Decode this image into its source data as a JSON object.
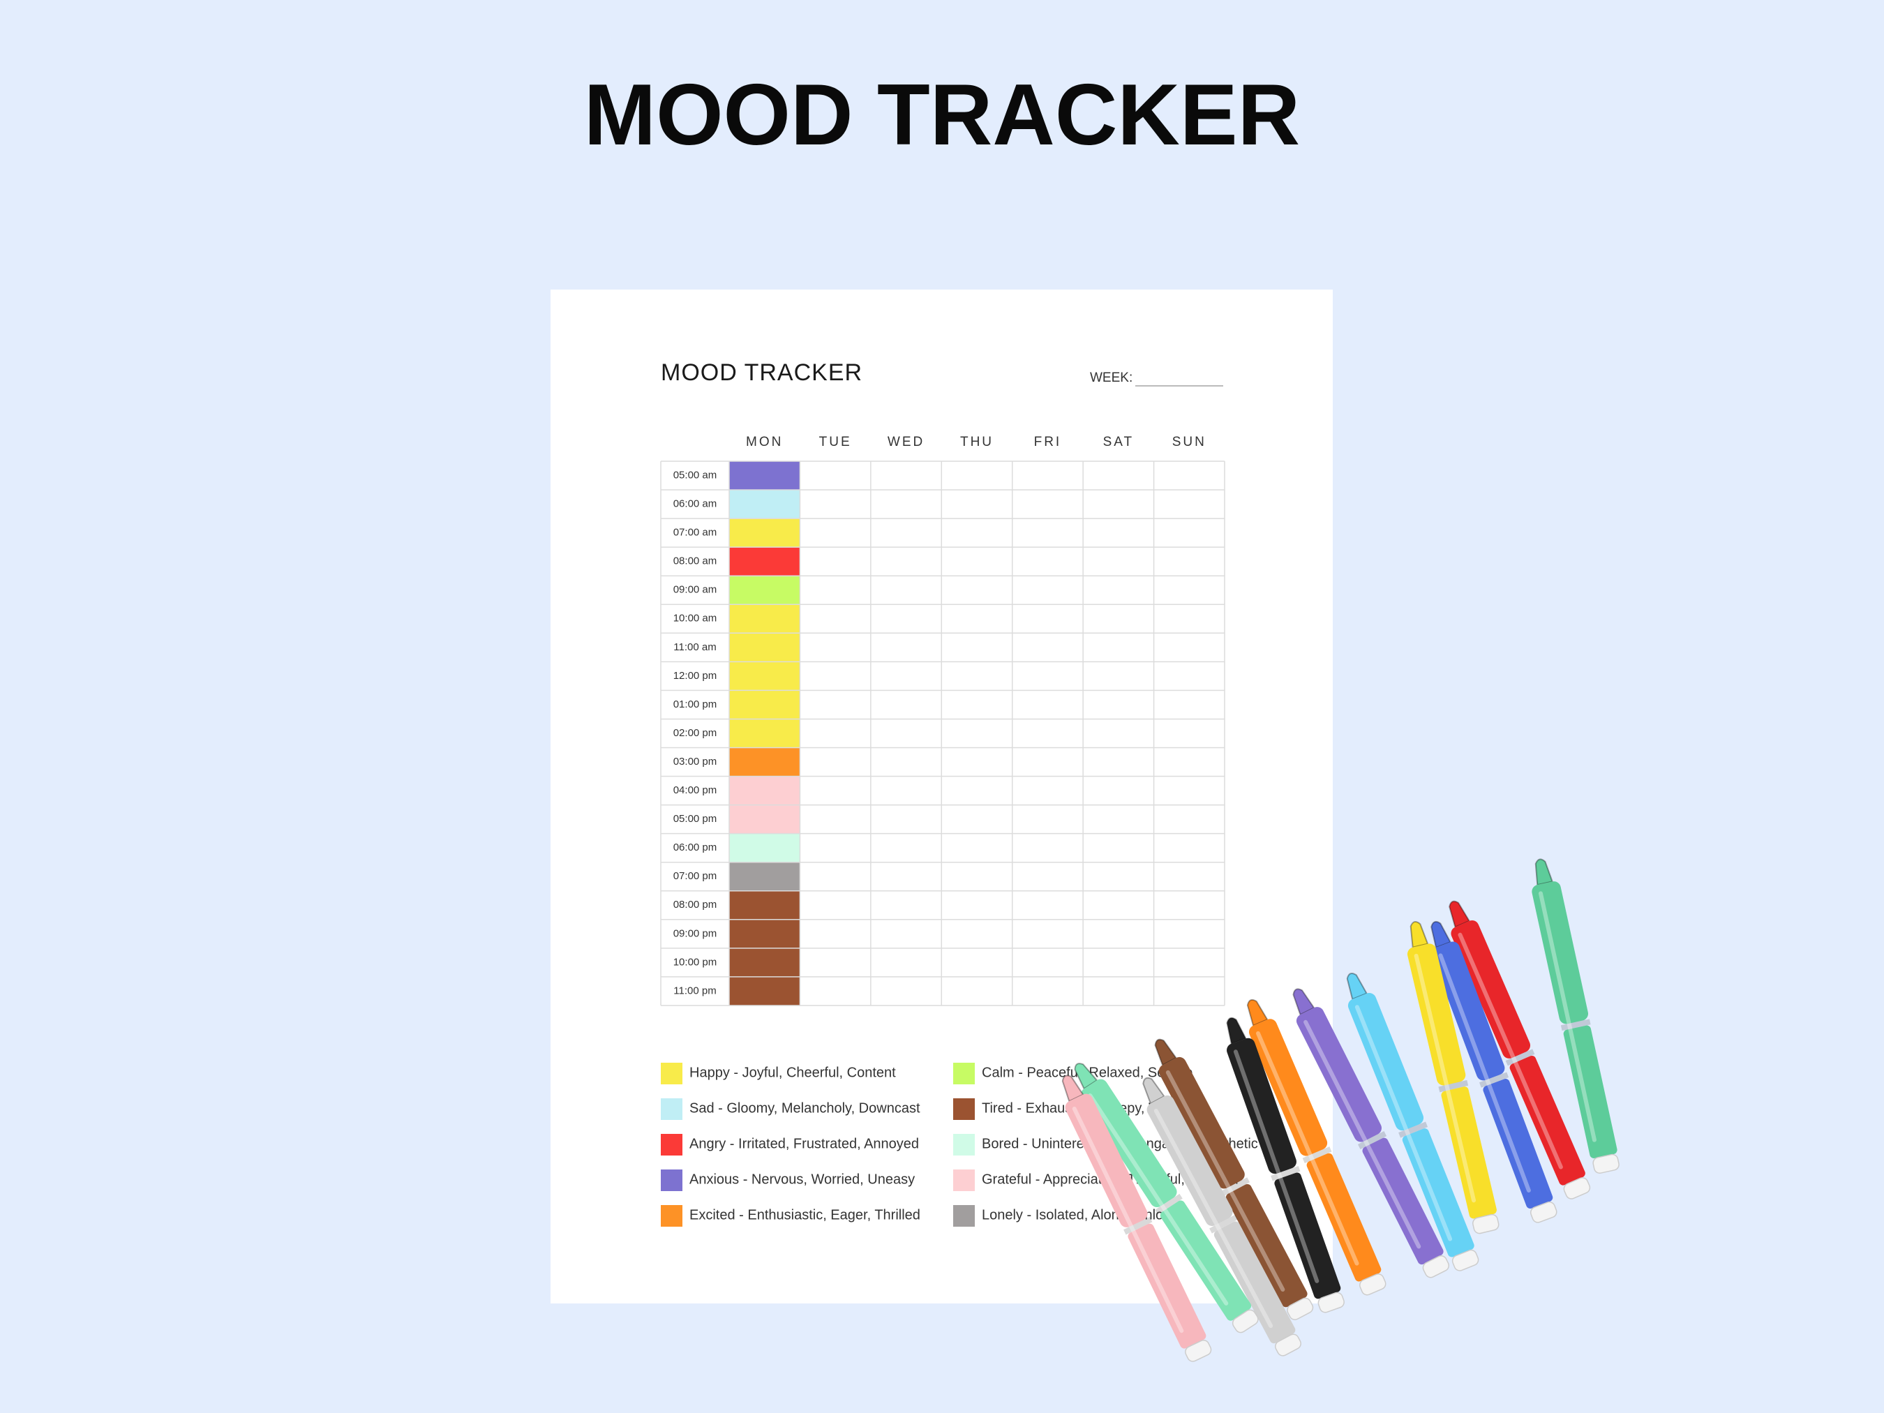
{
  "header": {
    "title": "MOOD TRACKER"
  },
  "sheet": {
    "title": "MOOD TRACKER",
    "week_label": "WEEK:",
    "days": [
      "MON",
      "TUE",
      "WED",
      "THU",
      "FRI",
      "SAT",
      "SUN"
    ],
    "times": [
      "05:00 am",
      "06:00 am",
      "07:00 am",
      "08:00 am",
      "09:00 am",
      "10:00 am",
      "11:00 am",
      "12:00 pm",
      "01:00 pm",
      "02:00 pm",
      "03:00 pm",
      "04:00 pm",
      "05:00 pm",
      "06:00 pm",
      "07:00 pm",
      "08:00 pm",
      "09:00 pm",
      "10:00 pm",
      "11:00 pm"
    ],
    "mon_colors": [
      "#7d72d0",
      "#c0eef5",
      "#f8eb4a",
      "#fb3a37",
      "#c7fb64",
      "#f8eb4a",
      "#f8eb4a",
      "#f8eb4a",
      "#f8eb4a",
      "#f8eb4a",
      "#fd9226",
      "#fdcfd2",
      "#fdcfd2",
      "#d0fbe7",
      "#a19e9e",
      "#9b5331",
      "#9b5331",
      "#9b5331",
      "#9b5331"
    ]
  },
  "legend": [
    {
      "label": "Happy - Joyful, Cheerful, Content",
      "color": "#f8eb4a"
    },
    {
      "label": "Sad - Gloomy, Melancholy, Downcast",
      "color": "#c0eef5"
    },
    {
      "label": "Angry - Irritated, Frustrated, Annoyed",
      "color": "#fb3a37"
    },
    {
      "label": "Anxious - Nervous, Worried, Uneasy",
      "color": "#7d72d0"
    },
    {
      "label": "Excited - Enthusiastic, Eager, Thrilled",
      "color": "#fd9226"
    },
    {
      "label": "Calm - Peaceful, Relaxed, Serene",
      "color": "#c7fb64"
    },
    {
      "label": "Tired - Exhausted, Sleepy, Weary",
      "color": "#9b5331"
    },
    {
      "label": "Bored - Uninterested, Disengaged, Apathetic",
      "color": "#d0fbe7"
    },
    {
      "label": "Grateful - Appreciative, Thankful, Blessed",
      "color": "#fdcfd2"
    },
    {
      "label": "Lonely - Isolated, Alone, Unloved",
      "color": "#a19e9e"
    }
  ]
}
